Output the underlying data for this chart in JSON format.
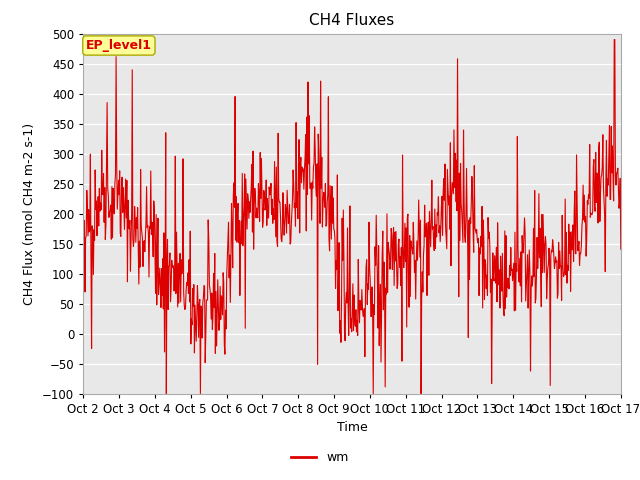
{
  "title": "CH4 Fluxes",
  "xlabel": "Time",
  "ylabel": "CH4 Flux (nmol CH4 m-2 s-1)",
  "ylim": [
    -100,
    500
  ],
  "yticks": [
    -100,
    -50,
    0,
    50,
    100,
    150,
    200,
    250,
    300,
    350,
    400,
    450,
    500
  ],
  "xtick_labels": [
    "Oct 2",
    "Oct 3",
    "Oct 4",
    "Oct 5",
    "Oct 6",
    "Oct 7",
    "Oct 8",
    "Oct 9",
    "Oct 10",
    "Oct 11",
    "Oct 12",
    "Oct 13",
    "Oct 14",
    "Oct 15",
    "Oct 16",
    "Oct 17"
  ],
  "line_color": "#dd0000",
  "line_width": 0.8,
  "legend_label": "wm",
  "legend_marker_color": "#dd0000",
  "annotation_text": "EP_level1",
  "annotation_bg": "#ffff99",
  "annotation_border": "#aaaa00",
  "plot_bg_color": "#e8e8e8",
  "title_fontsize": 11,
  "label_fontsize": 9,
  "tick_fontsize": 8.5,
  "seed": 42,
  "n_points": 900
}
